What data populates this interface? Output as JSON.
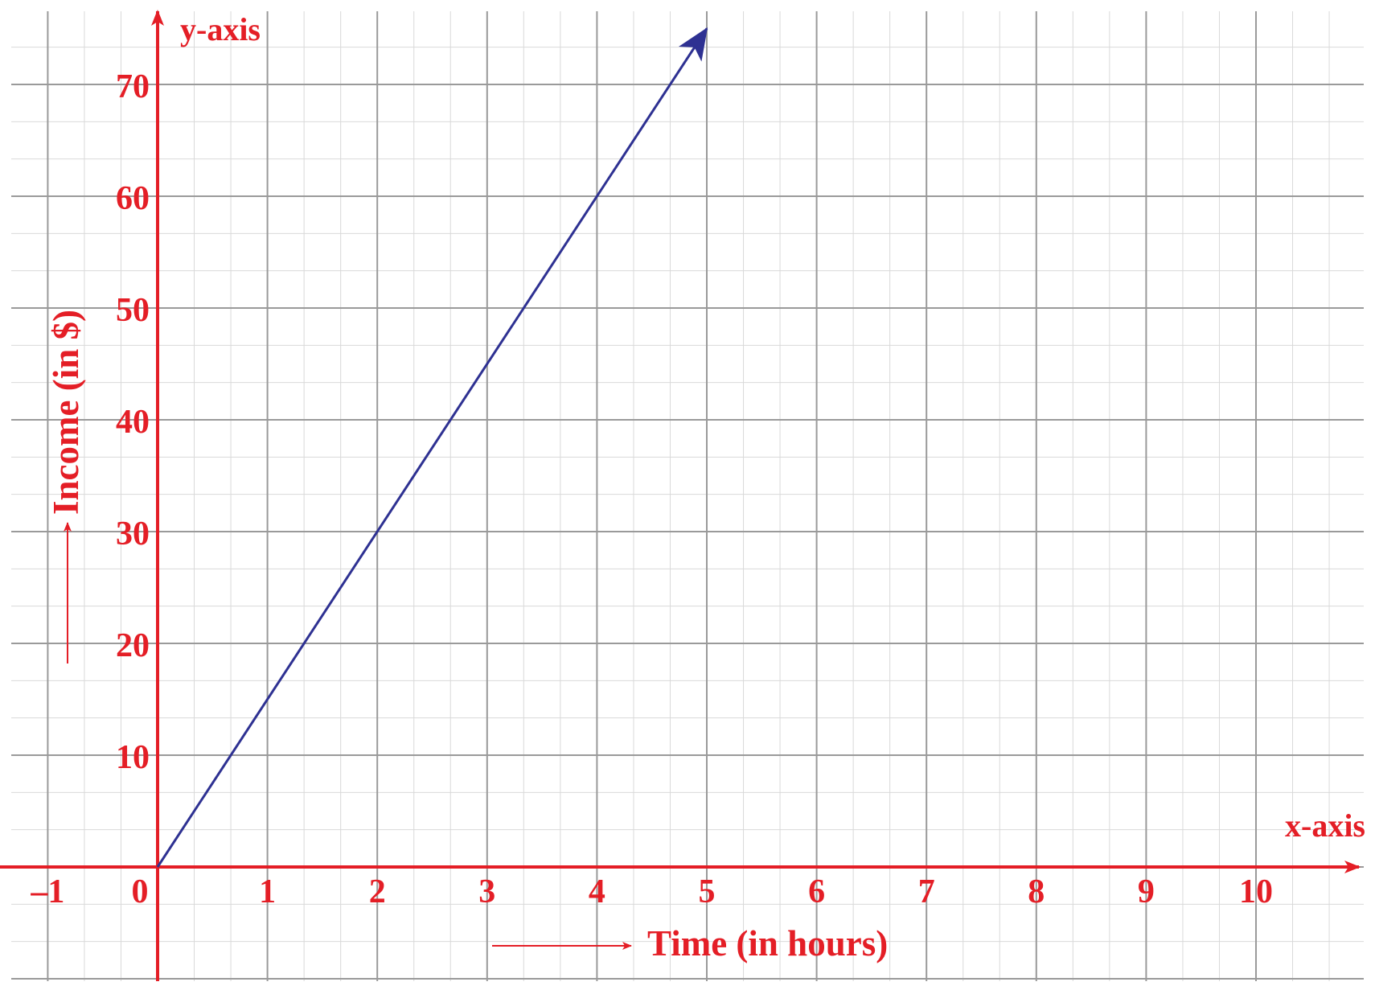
{
  "chart_data": {
    "type": "line",
    "xlabel": "Time (in hours)",
    "ylabel": "Income (in $)",
    "x_axis_name": "x-axis",
    "y_axis_name": "y-axis",
    "x_ticks": [
      -1,
      0,
      1,
      2,
      3,
      4,
      5,
      6,
      7,
      8,
      9,
      10
    ],
    "x_tick_labels": [
      "–1",
      "0",
      "1",
      "2",
      "3",
      "4",
      "5",
      "6",
      "7",
      "8",
      "9",
      "10"
    ],
    "y_ticks": [
      10,
      20,
      30,
      40,
      50,
      60,
      70
    ],
    "y_tick_labels": [
      "10",
      "20",
      "30",
      "40",
      "50",
      "60",
      "70"
    ],
    "xlim": [
      -1.3,
      11.0
    ],
    "ylim": [
      -10,
      77
    ],
    "grid": true,
    "series": [
      {
        "x": [
          0,
          5
        ],
        "y": [
          0,
          75
        ],
        "end_arrow": true
      }
    ],
    "colors": {
      "axis": "#e41e26",
      "series": "#2e3192",
      "grid_major": "#9a9a9a",
      "grid_minor": "#d9d9d9"
    }
  }
}
